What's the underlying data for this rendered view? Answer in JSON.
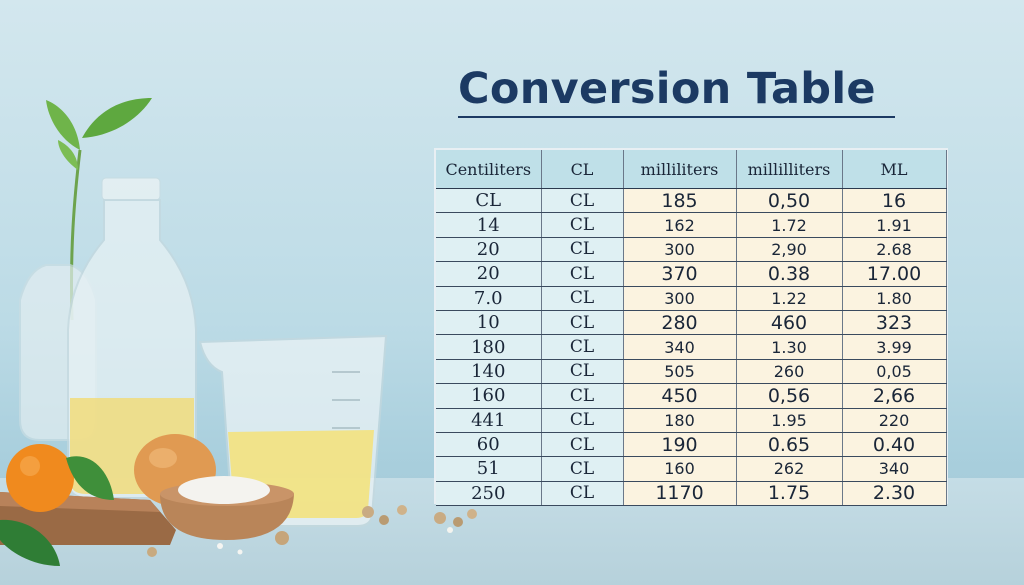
{
  "title": "Conversion Table",
  "table": {
    "headers": [
      "Centiliters",
      "CL",
      "milliliters",
      "millilliters",
      "ML"
    ],
    "rows": [
      {
        "big": true,
        "cells": [
          "CL",
          "CL",
          "185",
          "0,50",
          "16"
        ]
      },
      {
        "big": false,
        "cells": [
          "14",
          "CL",
          "162",
          "1.72",
          "1.91"
        ]
      },
      {
        "big": false,
        "cells": [
          "20",
          "CL",
          "300",
          "2,90",
          "2.68"
        ]
      },
      {
        "big": true,
        "cells": [
          "20",
          "CL",
          "370",
          "0.38",
          "17.00"
        ]
      },
      {
        "big": false,
        "cells": [
          "7.0",
          "CL",
          "300",
          "1.22",
          "1.80"
        ]
      },
      {
        "big": true,
        "cells": [
          "10",
          "CL",
          "280",
          "460",
          "323"
        ]
      },
      {
        "big": false,
        "cells": [
          "180",
          "CL",
          "340",
          "1.30",
          "3.99"
        ]
      },
      {
        "big": false,
        "cells": [
          "140",
          "CL",
          "505",
          "260",
          "0,05"
        ]
      },
      {
        "big": true,
        "cells": [
          "160",
          "CL",
          "450",
          "0,56",
          "2,66"
        ]
      },
      {
        "big": false,
        "cells": [
          "441",
          "CL",
          "180",
          "1.95",
          "220"
        ]
      },
      {
        "big": true,
        "cells": [
          "60",
          "CL",
          "190",
          "0.65",
          "0.40"
        ]
      },
      {
        "big": false,
        "cells": [
          "51",
          "CL",
          "160",
          "262",
          "340"
        ]
      },
      {
        "big": true,
        "cells": [
          "250",
          "CL",
          "1170",
          "1.75",
          "2.30"
        ]
      }
    ]
  },
  "colors": {
    "title": "#1c3a63",
    "header_bg": "#bfe0e8",
    "cell_left_bg": "#dff0f3",
    "cell_right_bg": "#fbf3e0"
  }
}
